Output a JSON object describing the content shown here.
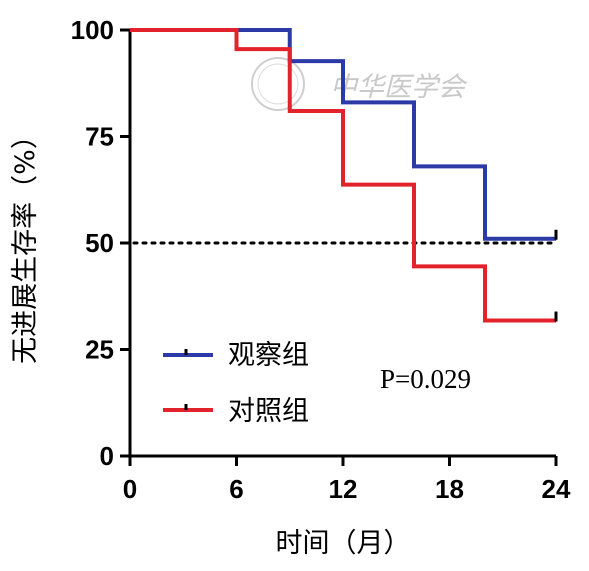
{
  "chart_data": {
    "type": "line",
    "subtype": "kaplan-meier-step",
    "xlabel": "时间（月）",
    "ylabel": "无进展生存率（%）",
    "xlim": [
      0,
      24
    ],
    "ylim": [
      0,
      100
    ],
    "x_ticks": [
      0,
      6,
      12,
      18,
      24
    ],
    "y_ticks": [
      0,
      25,
      50,
      75,
      100
    ],
    "x_tick_labels": [
      "0",
      "6",
      "12",
      "18",
      "24"
    ],
    "y_tick_labels": [
      "0",
      "25",
      "50",
      "75",
      "100"
    ],
    "grid": false,
    "legend_position": "bottom-left",
    "reference_line": {
      "y": 50,
      "style": "dotted"
    },
    "annotation": "P=0.029",
    "series": [
      {
        "name": "观察组",
        "color": "#2b3aa6",
        "x": [
          0,
          9,
          9,
          12,
          12,
          16,
          16,
          20,
          20,
          24
        ],
        "y": [
          100,
          100,
          92.7,
          92.7,
          83,
          83,
          68,
          68,
          51,
          51
        ],
        "censor": [
          {
            "x": 24,
            "y": 51
          }
        ]
      },
      {
        "name": "对照组",
        "color": "#e3232b",
        "x": [
          0,
          6,
          6,
          9,
          9,
          12,
          12,
          16,
          16,
          20,
          20,
          24
        ],
        "y": [
          100,
          100,
          95.5,
          95.5,
          81,
          81,
          63.7,
          63.7,
          44.5,
          44.5,
          31.8,
          31.8
        ],
        "censor": [
          {
            "x": 24,
            "y": 31.8
          }
        ]
      }
    ]
  },
  "watermark": {
    "text": "中华医学会"
  }
}
